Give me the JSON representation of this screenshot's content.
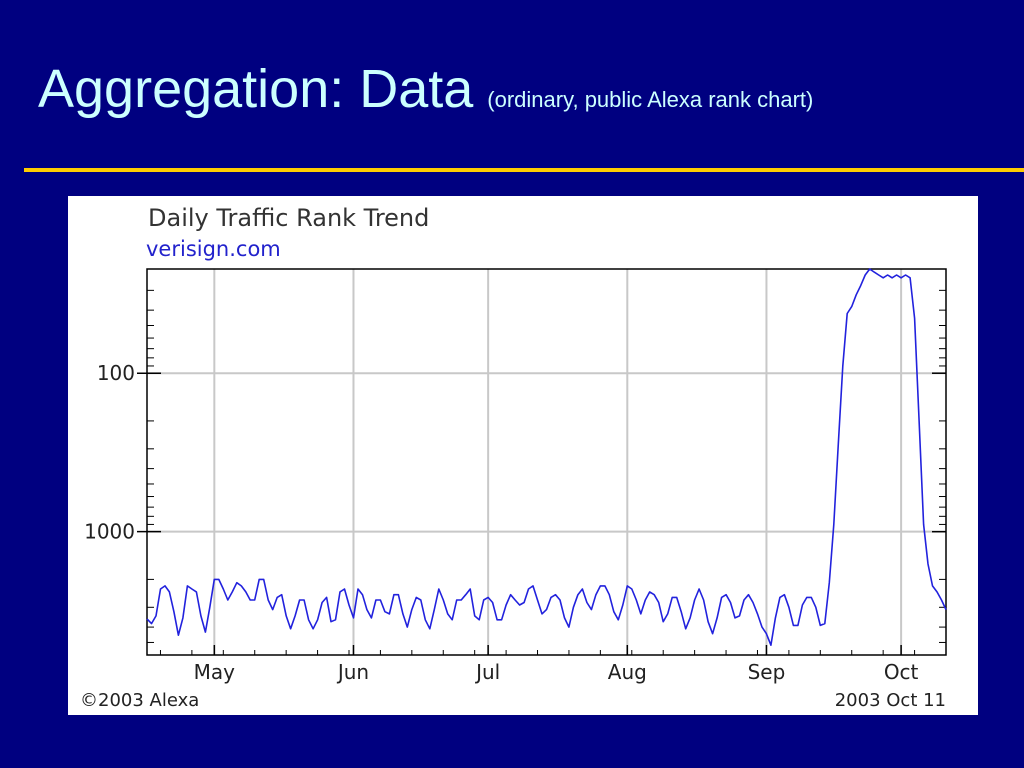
{
  "slide": {
    "title": "Aggregation: Data",
    "subtitle": "(ordinary, public Alexa rank chart)",
    "colors": {
      "background": "#000080",
      "title": "#ccffff",
      "rule": "#ffcc00",
      "series": "#2222dd"
    }
  },
  "chart_data": {
    "type": "line",
    "title": "Daily Traffic Rank Trend",
    "subtitle": "verisign.com",
    "y_scale": "log",
    "y_inverted": true,
    "ylim": [
      6000,
      22
    ],
    "yticks": [
      {
        "value": 100,
        "label": "100"
      },
      {
        "value": 1000,
        "label": "1000"
      }
    ],
    "x_range": [
      "2003-04-16",
      "2003-10-11"
    ],
    "xticks": [
      {
        "date": "2003-05-01",
        "label": "May"
      },
      {
        "date": "2003-06-01",
        "label": "Jun"
      },
      {
        "date": "2003-07-01",
        "label": "Jul"
      },
      {
        "date": "2003-08-01",
        "label": "Aug"
      },
      {
        "date": "2003-09-01",
        "label": "Sep"
      },
      {
        "date": "2003-10-01",
        "label": "Oct"
      }
    ],
    "grid": true,
    "legend": "none",
    "footer_left": "©2003 Alexa",
    "footer_right": "2003 Oct 11",
    "series": [
      {
        "points": [
          [
            "2003-04-16",
            3550
          ],
          [
            "2003-04-17",
            3800
          ],
          [
            "2003-04-18",
            3400
          ],
          [
            "2003-04-19",
            2300
          ],
          [
            "2003-04-20",
            2200
          ],
          [
            "2003-04-21",
            2400
          ],
          [
            "2003-04-22",
            3200
          ],
          [
            "2003-04-23",
            4500
          ],
          [
            "2003-04-24",
            3500
          ],
          [
            "2003-04-25",
            2200
          ],
          [
            "2003-04-26",
            2300
          ],
          [
            "2003-04-27",
            2400
          ],
          [
            "2003-04-28",
            3400
          ],
          [
            "2003-04-29",
            4300
          ],
          [
            "2003-04-30",
            3000
          ],
          [
            "2003-05-01",
            2000
          ],
          [
            "2003-05-02",
            2000
          ],
          [
            "2003-05-03",
            2300
          ],
          [
            "2003-05-04",
            2700
          ],
          [
            "2003-05-05",
            2400
          ],
          [
            "2003-05-06",
            2100
          ],
          [
            "2003-05-07",
            2200
          ],
          [
            "2003-05-08",
            2400
          ],
          [
            "2003-05-09",
            2700
          ],
          [
            "2003-05-10",
            2700
          ],
          [
            "2003-05-11",
            2000
          ],
          [
            "2003-05-12",
            2000
          ],
          [
            "2003-05-13",
            2700
          ],
          [
            "2003-05-14",
            3100
          ],
          [
            "2003-05-15",
            2600
          ],
          [
            "2003-05-16",
            2500
          ],
          [
            "2003-05-17",
            3400
          ],
          [
            "2003-05-18",
            4100
          ],
          [
            "2003-05-19",
            3400
          ],
          [
            "2003-05-20",
            2700
          ],
          [
            "2003-05-21",
            2700
          ],
          [
            "2003-05-22",
            3600
          ],
          [
            "2003-05-23",
            4100
          ],
          [
            "2003-05-24",
            3600
          ],
          [
            "2003-05-25",
            2800
          ],
          [
            "2003-05-26",
            2600
          ],
          [
            "2003-05-27",
            3700
          ],
          [
            "2003-05-28",
            3600
          ],
          [
            "2003-05-29",
            2400
          ],
          [
            "2003-05-30",
            2300
          ],
          [
            "2003-05-31",
            2900
          ],
          [
            "2003-06-01",
            3500
          ],
          [
            "2003-06-02",
            2300
          ],
          [
            "2003-06-03",
            2500
          ],
          [
            "2003-06-04",
            3100
          ],
          [
            "2003-06-05",
            3500
          ],
          [
            "2003-06-06",
            2700
          ],
          [
            "2003-06-07",
            2700
          ],
          [
            "2003-06-08",
            3200
          ],
          [
            "2003-06-09",
            3300
          ],
          [
            "2003-06-10",
            2500
          ],
          [
            "2003-06-11",
            2500
          ],
          [
            "2003-06-12",
            3300
          ],
          [
            "2003-06-13",
            4000
          ],
          [
            "2003-06-14",
            3100
          ],
          [
            "2003-06-15",
            2600
          ],
          [
            "2003-06-16",
            2700
          ],
          [
            "2003-06-17",
            3600
          ],
          [
            "2003-06-18",
            4100
          ],
          [
            "2003-06-19",
            3100
          ],
          [
            "2003-06-20",
            2300
          ],
          [
            "2003-06-21",
            2700
          ],
          [
            "2003-06-22",
            3300
          ],
          [
            "2003-06-23",
            3600
          ],
          [
            "2003-06-24",
            2700
          ],
          [
            "2003-06-25",
            2700
          ],
          [
            "2003-06-26",
            2500
          ],
          [
            "2003-06-27",
            2300
          ],
          [
            "2003-06-28",
            3400
          ],
          [
            "2003-06-29",
            3600
          ],
          [
            "2003-06-30",
            2700
          ],
          [
            "2003-07-01",
            2600
          ],
          [
            "2003-07-02",
            2800
          ],
          [
            "2003-07-03",
            3600
          ],
          [
            "2003-07-04",
            3600
          ],
          [
            "2003-07-05",
            2900
          ],
          [
            "2003-07-06",
            2500
          ],
          [
            "2003-07-07",
            2700
          ],
          [
            "2003-07-08",
            2900
          ],
          [
            "2003-07-09",
            2800
          ],
          [
            "2003-07-10",
            2300
          ],
          [
            "2003-07-11",
            2200
          ],
          [
            "2003-07-12",
            2700
          ],
          [
            "2003-07-13",
            3300
          ],
          [
            "2003-07-14",
            3100
          ],
          [
            "2003-07-15",
            2600
          ],
          [
            "2003-07-16",
            2500
          ],
          [
            "2003-07-17",
            2700
          ],
          [
            "2003-07-18",
            3500
          ],
          [
            "2003-07-19",
            4000
          ],
          [
            "2003-07-20",
            3000
          ],
          [
            "2003-07-21",
            2500
          ],
          [
            "2003-07-22",
            2300
          ],
          [
            "2003-07-23",
            2800
          ],
          [
            "2003-07-24",
            3100
          ],
          [
            "2003-07-25",
            2500
          ],
          [
            "2003-07-26",
            2200
          ],
          [
            "2003-07-27",
            2200
          ],
          [
            "2003-07-28",
            2500
          ],
          [
            "2003-07-29",
            3200
          ],
          [
            "2003-07-30",
            3600
          ],
          [
            "2003-07-31",
            2900
          ],
          [
            "2003-08-01",
            2200
          ],
          [
            "2003-08-02",
            2300
          ],
          [
            "2003-08-03",
            2700
          ],
          [
            "2003-08-04",
            3300
          ],
          [
            "2003-08-05",
            2700
          ],
          [
            "2003-08-06",
            2400
          ],
          [
            "2003-08-07",
            2500
          ],
          [
            "2003-08-08",
            2800
          ],
          [
            "2003-08-09",
            3700
          ],
          [
            "2003-08-10",
            3300
          ],
          [
            "2003-08-11",
            2600
          ],
          [
            "2003-08-12",
            2600
          ],
          [
            "2003-08-13",
            3200
          ],
          [
            "2003-08-14",
            4100
          ],
          [
            "2003-08-15",
            3500
          ],
          [
            "2003-08-16",
            2700
          ],
          [
            "2003-08-17",
            2300
          ],
          [
            "2003-08-18",
            2700
          ],
          [
            "2003-08-19",
            3700
          ],
          [
            "2003-08-20",
            4400
          ],
          [
            "2003-08-21",
            3500
          ],
          [
            "2003-08-22",
            2600
          ],
          [
            "2003-08-23",
            2500
          ],
          [
            "2003-08-24",
            2800
          ],
          [
            "2003-08-25",
            3500
          ],
          [
            "2003-08-26",
            3400
          ],
          [
            "2003-08-27",
            2700
          ],
          [
            "2003-08-28",
            2500
          ],
          [
            "2003-08-29",
            2800
          ],
          [
            "2003-08-30",
            3300
          ],
          [
            "2003-08-31",
            4000
          ],
          [
            "2003-09-01",
            4400
          ],
          [
            "2003-09-02",
            5200
          ],
          [
            "2003-09-03",
            3500
          ],
          [
            "2003-09-04",
            2600
          ],
          [
            "2003-09-05",
            2500
          ],
          [
            "2003-09-06",
            3000
          ],
          [
            "2003-09-07",
            3900
          ],
          [
            "2003-09-08",
            3900
          ],
          [
            "2003-09-09",
            2900
          ],
          [
            "2003-09-10",
            2600
          ],
          [
            "2003-09-11",
            2600
          ],
          [
            "2003-09-12",
            3000
          ],
          [
            "2003-09-13",
            3900
          ],
          [
            "2003-09-14",
            3800
          ],
          [
            "2003-09-15",
            2100
          ],
          [
            "2003-09-16",
            900
          ],
          [
            "2003-09-17",
            280
          ],
          [
            "2003-09-18",
            90
          ],
          [
            "2003-09-19",
            42
          ],
          [
            "2003-09-20",
            38
          ],
          [
            "2003-09-21",
            32
          ],
          [
            "2003-09-22",
            28
          ],
          [
            "2003-09-23",
            24
          ],
          [
            "2003-09-24",
            22
          ],
          [
            "2003-09-25",
            23
          ],
          [
            "2003-09-26",
            24
          ],
          [
            "2003-09-27",
            25
          ],
          [
            "2003-09-28",
            24
          ],
          [
            "2003-09-29",
            25
          ],
          [
            "2003-09-30",
            24
          ],
          [
            "2003-10-01",
            25
          ],
          [
            "2003-10-02",
            24
          ],
          [
            "2003-10-03",
            25
          ],
          [
            "2003-10-04",
            45
          ],
          [
            "2003-10-05",
            200
          ],
          [
            "2003-10-06",
            900
          ],
          [
            "2003-10-07",
            1600
          ],
          [
            "2003-10-08",
            2200
          ],
          [
            "2003-10-09",
            2400
          ],
          [
            "2003-10-10",
            2700
          ],
          [
            "2003-10-11",
            3100
          ]
        ]
      }
    ]
  }
}
